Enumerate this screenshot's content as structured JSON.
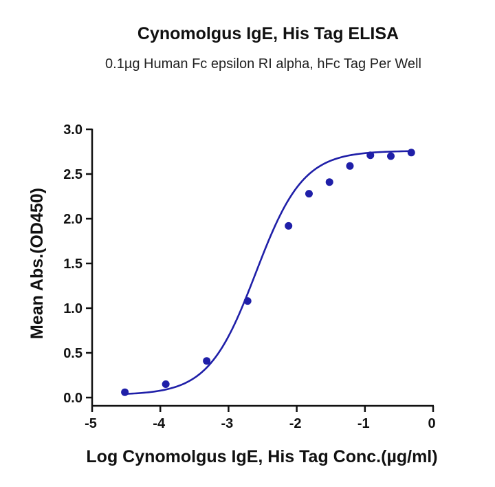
{
  "chart_data": {
    "type": "scatter",
    "title": "Cynomolgus IgE, His Tag ELISA",
    "subtitle": "0.1µg Human Fc epsilon RI alpha, hFc Tag Per Well",
    "xlabel": "Log Cynomolgus IgE, His Tag Conc.(µg/ml)",
    "ylabel": "Mean Abs.(OD450)",
    "xlim": [
      -5,
      0
    ],
    "ylim": [
      0,
      3.0
    ],
    "x_ticks": [
      "-5",
      "-4",
      "-3",
      "-2",
      "-1",
      "0"
    ],
    "y_ticks": [
      "0.0",
      "0.5",
      "1.0",
      "1.5",
      "2.0",
      "2.5",
      "3.0"
    ],
    "series": [
      {
        "color": "#1f1fa8",
        "points": [
          {
            "x": -4.52,
            "y": 0.06
          },
          {
            "x": -3.92,
            "y": 0.15
          },
          {
            "x": -3.32,
            "y": 0.41
          },
          {
            "x": -2.72,
            "y": 1.08
          },
          {
            "x": -2.12,
            "y": 1.92
          },
          {
            "x": -1.82,
            "y": 2.28
          },
          {
            "x": -1.52,
            "y": 2.41
          },
          {
            "x": -1.22,
            "y": 2.59
          },
          {
            "x": -0.92,
            "y": 2.71
          },
          {
            "x": -0.62,
            "y": 2.7
          },
          {
            "x": -0.32,
            "y": 2.74
          }
        ],
        "fit": {
          "model": "4PL",
          "bottom": 0.03,
          "top": 2.76,
          "logEC50": -2.6,
          "hill": 1.25,
          "x_range": [
            -4.52,
            -0.32
          ]
        }
      }
    ],
    "grid": false,
    "legend": "none"
  }
}
